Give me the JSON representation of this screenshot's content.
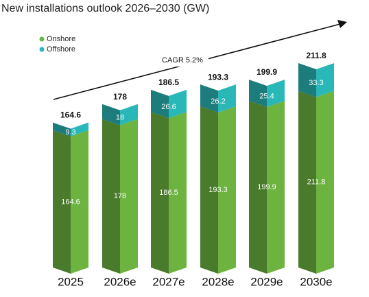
{
  "chart_data": {
    "type": "stacked_bar",
    "title": "New installations outlook 2026–2030 (GW)",
    "annotation": "CAGR 5.2%",
    "categories": [
      "2025",
      "2026e",
      "2027e",
      "2028e",
      "2029e",
      "2030e"
    ],
    "series": [
      {
        "name": "Onshore",
        "color": "#6db33f",
        "values": [
          164.6,
          178,
          186.5,
          193.3,
          199.9,
          211.8
        ]
      },
      {
        "name": "Offshore",
        "color": "#2ab7b7",
        "values": [
          9.3,
          18,
          26.6,
          26.2,
          25.4,
          33.3
        ]
      }
    ],
    "legend": "top-left"
  }
}
